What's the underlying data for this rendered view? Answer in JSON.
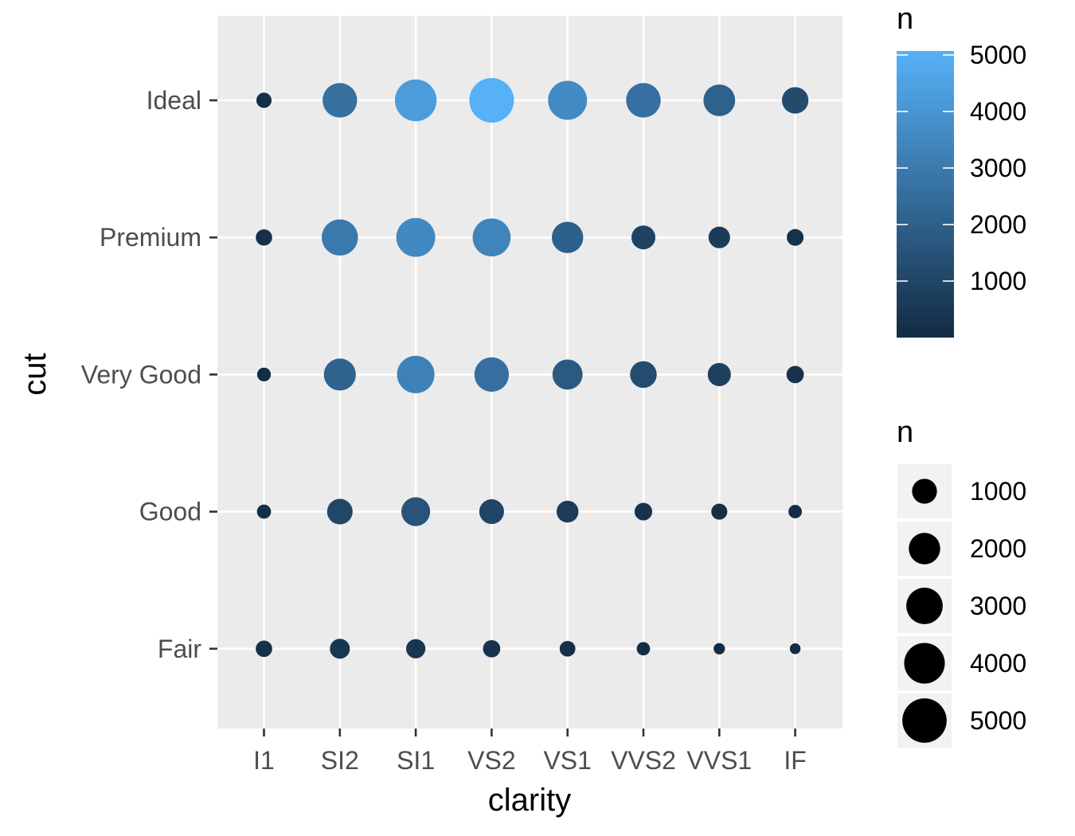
{
  "chart_data": {
    "type": "scatter",
    "xlabel": "clarity",
    "ylabel": "cut",
    "x_categories": [
      "I1",
      "SI2",
      "SI1",
      "VS2",
      "VS1",
      "VVS2",
      "VVS1",
      "IF"
    ],
    "y_categories": [
      "Fair",
      "Good",
      "Very Good",
      "Premium",
      "Ideal"
    ],
    "grid": true,
    "legend_position": "right",
    "points": [
      {
        "cut": "Ideal",
        "clarity": "I1",
        "n": 146
      },
      {
        "cut": "Ideal",
        "clarity": "SI2",
        "n": 2598
      },
      {
        "cut": "Ideal",
        "clarity": "SI1",
        "n": 4282
      },
      {
        "cut": "Ideal",
        "clarity": "VS2",
        "n": 5071
      },
      {
        "cut": "Ideal",
        "clarity": "VS1",
        "n": 3589
      },
      {
        "cut": "Ideal",
        "clarity": "VVS2",
        "n": 2606
      },
      {
        "cut": "Ideal",
        "clarity": "VVS1",
        "n": 2047
      },
      {
        "cut": "Ideal",
        "clarity": "IF",
        "n": 1212
      },
      {
        "cut": "Premium",
        "clarity": "I1",
        "n": 205
      },
      {
        "cut": "Premium",
        "clarity": "SI2",
        "n": 2949
      },
      {
        "cut": "Premium",
        "clarity": "SI1",
        "n": 3575
      },
      {
        "cut": "Premium",
        "clarity": "VS2",
        "n": 3357
      },
      {
        "cut": "Premium",
        "clarity": "VS1",
        "n": 1989
      },
      {
        "cut": "Premium",
        "clarity": "VVS2",
        "n": 870
      },
      {
        "cut": "Premium",
        "clarity": "VVS1",
        "n": 616
      },
      {
        "cut": "Premium",
        "clarity": "IF",
        "n": 230
      },
      {
        "cut": "Very Good",
        "clarity": "I1",
        "n": 84
      },
      {
        "cut": "Very Good",
        "clarity": "SI2",
        "n": 2100
      },
      {
        "cut": "Very Good",
        "clarity": "SI1",
        "n": 3240
      },
      {
        "cut": "Very Good",
        "clarity": "VS2",
        "n": 2591
      },
      {
        "cut": "Very Good",
        "clarity": "VS1",
        "n": 1775
      },
      {
        "cut": "Very Good",
        "clarity": "VVS2",
        "n": 1235
      },
      {
        "cut": "Very Good",
        "clarity": "VVS1",
        "n": 789
      },
      {
        "cut": "Very Good",
        "clarity": "IF",
        "n": 268
      },
      {
        "cut": "Good",
        "clarity": "I1",
        "n": 96
      },
      {
        "cut": "Good",
        "clarity": "SI2",
        "n": 1081
      },
      {
        "cut": "Good",
        "clarity": "SI1",
        "n": 1560
      },
      {
        "cut": "Good",
        "clarity": "VS2",
        "n": 978
      },
      {
        "cut": "Good",
        "clarity": "VS1",
        "n": 648
      },
      {
        "cut": "Good",
        "clarity": "VVS2",
        "n": 286
      },
      {
        "cut": "Good",
        "clarity": "VVS1",
        "n": 186
      },
      {
        "cut": "Good",
        "clarity": "IF",
        "n": 71
      },
      {
        "cut": "Fair",
        "clarity": "I1",
        "n": 210
      },
      {
        "cut": "Fair",
        "clarity": "SI2",
        "n": 466
      },
      {
        "cut": "Fair",
        "clarity": "SI1",
        "n": 408
      },
      {
        "cut": "Fair",
        "clarity": "VS2",
        "n": 261
      },
      {
        "cut": "Fair",
        "clarity": "VS1",
        "n": 170
      },
      {
        "cut": "Fair",
        "clarity": "VVS2",
        "n": 69
      },
      {
        "cut": "Fair",
        "clarity": "VVS1",
        "n": 17
      },
      {
        "cut": "Fair",
        "clarity": "IF",
        "n": 9
      }
    ],
    "color_legend": {
      "title": "n",
      "range": [
        0,
        5071
      ],
      "low_color": "#132B43",
      "high_color": "#56B1F7",
      "breaks": [
        1000,
        2000,
        3000,
        4000,
        5000
      ],
      "labels": [
        "1000",
        "2000",
        "3000",
        "4000",
        "5000"
      ]
    },
    "size_legend": {
      "title": "n",
      "breaks": [
        1000,
        2000,
        3000,
        4000,
        5000
      ],
      "labels": [
        "1000",
        "2000",
        "3000",
        "4000",
        "5000"
      ],
      "key_color": "#000000"
    },
    "colors": {
      "panel_background": "#EBEBEB",
      "grid_line": "#FFFFFF",
      "tick_text": "#4D4D4D",
      "tick_mark": "#333333"
    }
  }
}
